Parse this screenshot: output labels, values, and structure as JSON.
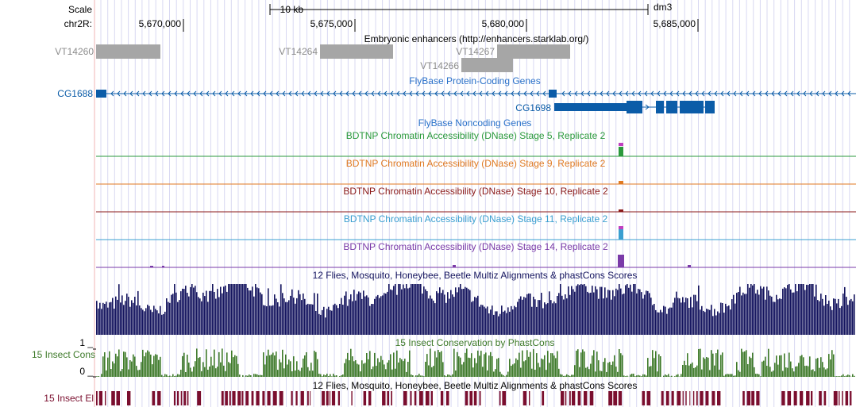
{
  "colors": {
    "blue_gene": "#0b5ca8",
    "blue_title": "#2a71c9",
    "gray_feature": "#a6a6a6",
    "gray_label": "#8c8c8c",
    "stage5": "#2b9a3c",
    "stage9": "#e07a22",
    "stage10": "#8b1a1a",
    "stage11": "#3a9fd0",
    "stage14": "#7a3aa8",
    "multiz": "#14145e",
    "insectcons": "#3e7a2a",
    "insectel": "#7a0e2e",
    "gridline": "#d8d8f2",
    "leftline": "#f2b4b4"
  },
  "ruler": {
    "scale_label": "Scale",
    "chrom_label": "chr2R:",
    "scalebar_label": "10 kb",
    "assembly": "dm3",
    "ticks": [
      "5,670,000",
      "5,675,000",
      "5,680,000",
      "5,685,000"
    ]
  },
  "tracks": {
    "enhancers": {
      "title": "Embryonic enhancers (http://enhancers.starklab.org/)",
      "features": [
        "VT14260",
        "VT14264",
        "VT14266",
        "VT14267"
      ]
    },
    "flybase_coding": {
      "title": "FlyBase Protein-Coding Genes",
      "genes": [
        "CG1688",
        "CG1698"
      ]
    },
    "flybase_noncoding": {
      "title": "FlyBase Noncoding Genes"
    },
    "dnase_stage5": {
      "title": "BDTNP Chromatin Accessibility (DNase) Stage 5, Replicate 2"
    },
    "dnase_stage9": {
      "title": "BDTNP Chromatin Accessibility (DNase) Stage 9, Replicate 2"
    },
    "dnase_stage10": {
      "title": "BDTNP Chromatin Accessibility (DNase) Stage 10, Replicate 2"
    },
    "dnase_stage11": {
      "title": "BDTNP Chromatin Accessibility (DNase) Stage 11, Replicate 2"
    },
    "dnase_stage14": {
      "title": "BDTNP Chromatin Accessibility (DNase) Stage 14, Replicate 2"
    },
    "multiz": {
      "title": "12 Flies, Mosquito, Honeybee, Beetle Multiz Alignments & phastCons Scores"
    },
    "insect_cons": {
      "title": "15 Insect Conservation by PhastCons",
      "side_label": "15 Insect Cons",
      "ymax": "1 _",
      "ymin": "0 _"
    },
    "multiz2": {
      "title": "12 Flies, Mosquito, Honeybee, Beetle Multiz Alignments & phastCons Scores"
    },
    "insect_el": {
      "side_label": "15 Insect El"
    }
  }
}
